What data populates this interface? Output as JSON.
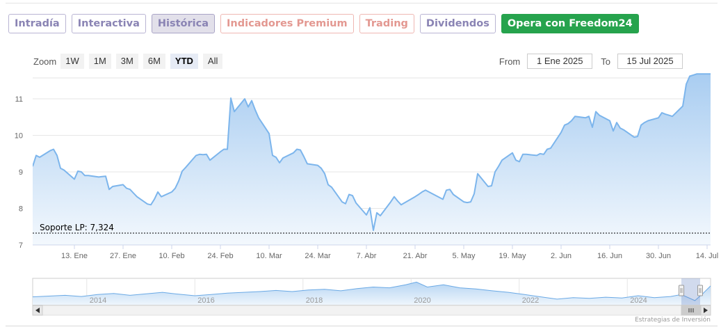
{
  "tabs": [
    {
      "label": "Intradía",
      "style": "normal"
    },
    {
      "label": "Interactiva",
      "style": "normal"
    },
    {
      "label": "Histórica",
      "style": "active"
    },
    {
      "label": "Indicadores Premium",
      "style": "premium"
    },
    {
      "label": "Trading",
      "style": "premium"
    },
    {
      "label": "Dividendos",
      "style": "normal"
    },
    {
      "label": "Opera con Freedom24",
      "style": "green"
    }
  ],
  "zoom": {
    "label": "Zoom",
    "buttons": [
      "1W",
      "1M",
      "3M",
      "6M",
      "YTD",
      "All"
    ],
    "selected": "YTD"
  },
  "range": {
    "from_label": "From",
    "from_value": "1 Ene 2025",
    "to_label": "To",
    "to_value": "15 Jul 2025"
  },
  "credits": "Estrategias de Inversión",
  "colors": {
    "line": "#7cb5ec",
    "area_top": "#a9cdf1",
    "area_bottom": "#f3f8fd",
    "grid": "#e6e6e6"
  },
  "chart_data": {
    "type": "area",
    "x_start": "2025-01-01",
    "x_end": "2025-07-15",
    "ylim": [
      7,
      11.8
    ],
    "y_ticks": [
      7,
      8,
      9,
      10,
      11
    ],
    "x_ticks": [
      {
        "date": "2025-01-13",
        "label": "13. Ene"
      },
      {
        "date": "2025-01-27",
        "label": "27. Ene"
      },
      {
        "date": "2025-02-10",
        "label": "10. Feb"
      },
      {
        "date": "2025-02-24",
        "label": "24. Feb"
      },
      {
        "date": "2025-03-10",
        "label": "10. Mar"
      },
      {
        "date": "2025-03-24",
        "label": "24. Mar"
      },
      {
        "date": "2025-04-07",
        "label": "7. Abr"
      },
      {
        "date": "2025-04-21",
        "label": "21. Abr"
      },
      {
        "date": "2025-05-05",
        "label": "5. May"
      },
      {
        "date": "2025-05-19",
        "label": "19. May"
      },
      {
        "date": "2025-06-02",
        "label": "2. Jun"
      },
      {
        "date": "2025-06-16",
        "label": "16. Jun"
      },
      {
        "date": "2025-06-30",
        "label": "30. Jun"
      },
      {
        "date": "2025-07-14",
        "label": "14. Jul"
      }
    ],
    "support": {
      "label": "Soporte LP: 7,324",
      "value": 7.324
    },
    "series": [
      {
        "points": [
          [
            "2025-01-01",
            9.15
          ],
          [
            "2025-01-02",
            9.45
          ],
          [
            "2025-01-03",
            9.4
          ],
          [
            "2025-01-06",
            9.58
          ],
          [
            "2025-01-07",
            9.62
          ],
          [
            "2025-01-08",
            9.45
          ],
          [
            "2025-01-09",
            9.1
          ],
          [
            "2025-01-10",
            9.05
          ],
          [
            "2025-01-13",
            8.8
          ],
          [
            "2025-01-14",
            9.02
          ],
          [
            "2025-01-15",
            9.0
          ],
          [
            "2025-01-16",
            8.9
          ],
          [
            "2025-01-17",
            8.9
          ],
          [
            "2025-01-20",
            8.86
          ],
          [
            "2025-01-21",
            8.87
          ],
          [
            "2025-01-22",
            8.88
          ],
          [
            "2025-01-23",
            8.52
          ],
          [
            "2025-01-24",
            8.6
          ],
          [
            "2025-01-27",
            8.65
          ],
          [
            "2025-01-28",
            8.55
          ],
          [
            "2025-01-29",
            8.52
          ],
          [
            "2025-01-30",
            8.42
          ],
          [
            "2025-01-31",
            8.32
          ],
          [
            "2025-02-03",
            8.12
          ],
          [
            "2025-02-04",
            8.1
          ],
          [
            "2025-02-05",
            8.25
          ],
          [
            "2025-02-06",
            8.45
          ],
          [
            "2025-02-07",
            8.32
          ],
          [
            "2025-02-10",
            8.45
          ],
          [
            "2025-02-11",
            8.55
          ],
          [
            "2025-02-12",
            8.75
          ],
          [
            "2025-02-13",
            9.02
          ],
          [
            "2025-02-14",
            9.12
          ],
          [
            "2025-02-17",
            9.45
          ],
          [
            "2025-02-18",
            9.48
          ],
          [
            "2025-02-19",
            9.47
          ],
          [
            "2025-02-20",
            9.48
          ],
          [
            "2025-02-21",
            9.32
          ],
          [
            "2025-02-24",
            9.55
          ],
          [
            "2025-02-25",
            9.62
          ],
          [
            "2025-02-26",
            9.62
          ],
          [
            "2025-02-27",
            11.02
          ],
          [
            "2025-02-28",
            10.65
          ],
          [
            "2025-03-03",
            11.0
          ],
          [
            "2025-03-04",
            10.78
          ],
          [
            "2025-03-05",
            10.95
          ],
          [
            "2025-03-06",
            10.7
          ],
          [
            "2025-03-07",
            10.48
          ],
          [
            "2025-03-10",
            10.05
          ],
          [
            "2025-03-11",
            9.45
          ],
          [
            "2025-03-12",
            9.4
          ],
          [
            "2025-03-13",
            9.25
          ],
          [
            "2025-03-14",
            9.38
          ],
          [
            "2025-03-17",
            9.52
          ],
          [
            "2025-03-18",
            9.62
          ],
          [
            "2025-03-19",
            9.6
          ],
          [
            "2025-03-20",
            9.42
          ],
          [
            "2025-03-21",
            9.22
          ],
          [
            "2025-03-24",
            9.18
          ],
          [
            "2025-03-25",
            9.1
          ],
          [
            "2025-03-26",
            8.95
          ],
          [
            "2025-03-27",
            8.65
          ],
          [
            "2025-03-28",
            8.58
          ],
          [
            "2025-03-31",
            8.18
          ],
          [
            "2025-04-01",
            8.13
          ],
          [
            "2025-04-02",
            8.38
          ],
          [
            "2025-04-03",
            8.35
          ],
          [
            "2025-04-04",
            8.15
          ],
          [
            "2025-04-07",
            7.82
          ],
          [
            "2025-04-08",
            8.02
          ],
          [
            "2025-04-09",
            7.4
          ],
          [
            "2025-04-10",
            7.88
          ],
          [
            "2025-04-11",
            7.8
          ],
          [
            "2025-04-14",
            8.18
          ],
          [
            "2025-04-15",
            8.32
          ],
          [
            "2025-04-16",
            8.2
          ],
          [
            "2025-04-17",
            8.1
          ],
          [
            "2025-04-21",
            8.32
          ],
          [
            "2025-04-22",
            8.38
          ],
          [
            "2025-04-23",
            8.45
          ],
          [
            "2025-04-24",
            8.5
          ],
          [
            "2025-04-25",
            8.45
          ],
          [
            "2025-04-28",
            8.3
          ],
          [
            "2025-04-29",
            8.25
          ],
          [
            "2025-04-30",
            8.5
          ],
          [
            "2025-05-01",
            8.52
          ],
          [
            "2025-05-02",
            8.38
          ],
          [
            "2025-05-05",
            8.18
          ],
          [
            "2025-05-06",
            8.16
          ],
          [
            "2025-05-07",
            8.18
          ],
          [
            "2025-05-08",
            8.4
          ],
          [
            "2025-05-09",
            8.95
          ],
          [
            "2025-05-12",
            8.6
          ],
          [
            "2025-05-13",
            8.62
          ],
          [
            "2025-05-14",
            9.0
          ],
          [
            "2025-05-15",
            9.15
          ],
          [
            "2025-05-16",
            9.32
          ],
          [
            "2025-05-19",
            9.52
          ],
          [
            "2025-05-20",
            9.32
          ],
          [
            "2025-05-21",
            9.28
          ],
          [
            "2025-05-22",
            9.48
          ],
          [
            "2025-05-23",
            9.48
          ],
          [
            "2025-05-26",
            9.45
          ],
          [
            "2025-05-27",
            9.5
          ],
          [
            "2025-05-28",
            9.48
          ],
          [
            "2025-05-29",
            9.62
          ],
          [
            "2025-05-30",
            9.65
          ],
          [
            "2025-06-02",
            10.08
          ],
          [
            "2025-06-03",
            10.28
          ],
          [
            "2025-06-04",
            10.32
          ],
          [
            "2025-06-05",
            10.4
          ],
          [
            "2025-06-06",
            10.52
          ],
          [
            "2025-06-09",
            10.48
          ],
          [
            "2025-06-10",
            10.52
          ],
          [
            "2025-06-11",
            10.22
          ],
          [
            "2025-06-12",
            10.65
          ],
          [
            "2025-06-13",
            10.55
          ],
          [
            "2025-06-16",
            10.4
          ],
          [
            "2025-06-17",
            10.12
          ],
          [
            "2025-06-18",
            10.35
          ],
          [
            "2025-06-19",
            10.2
          ],
          [
            "2025-06-20",
            10.15
          ],
          [
            "2025-06-23",
            9.95
          ],
          [
            "2025-06-24",
            9.97
          ],
          [
            "2025-06-25",
            10.28
          ],
          [
            "2025-06-26",
            10.35
          ],
          [
            "2025-06-27",
            10.4
          ],
          [
            "2025-06-30",
            10.48
          ],
          [
            "2025-07-01",
            10.62
          ],
          [
            "2025-07-02",
            10.58
          ],
          [
            "2025-07-03",
            10.55
          ],
          [
            "2025-07-04",
            10.52
          ],
          [
            "2025-07-07",
            10.8
          ],
          [
            "2025-07-08",
            11.4
          ],
          [
            "2025-07-09",
            11.62
          ],
          [
            "2025-07-10",
            11.65
          ],
          [
            "2025-07-11",
            11.68
          ],
          [
            "2025-07-14",
            11.68
          ],
          [
            "2025-07-15",
            11.68
          ]
        ]
      }
    ],
    "navigator": {
      "year_labels": [
        "2014",
        "2016",
        "2018",
        "2020",
        "2022",
        "2024"
      ],
      "year_start": 2013,
      "year_end": 2025.54,
      "selected_from_year": 2025.0,
      "values": [
        [
          2013.0,
          8.6
        ],
        [
          2013.3,
          8.8
        ],
        [
          2013.6,
          9.0
        ],
        [
          2013.9,
          8.7
        ],
        [
          2014.2,
          9.2
        ],
        [
          2014.5,
          9.5
        ],
        [
          2014.8,
          9.0
        ],
        [
          2015.1,
          9.4
        ],
        [
          2015.4,
          9.8
        ],
        [
          2015.7,
          9.3
        ],
        [
          2016.0,
          8.9
        ],
        [
          2016.3,
          9.2
        ],
        [
          2016.6,
          9.6
        ],
        [
          2016.9,
          9.8
        ],
        [
          2017.2,
          10.0
        ],
        [
          2017.5,
          10.3
        ],
        [
          2017.8,
          10.0
        ],
        [
          2018.1,
          10.4
        ],
        [
          2018.4,
          10.6
        ],
        [
          2018.7,
          10.2
        ],
        [
          2019.0,
          10.8
        ],
        [
          2019.3,
          11.2
        ],
        [
          2019.6,
          11.0
        ],
        [
          2019.9,
          11.8
        ],
        [
          2020.1,
          12.5
        ],
        [
          2020.3,
          11.2
        ],
        [
          2020.6,
          11.8
        ],
        [
          2020.9,
          11.0
        ],
        [
          2021.2,
          10.7
        ],
        [
          2021.5,
          10.2
        ],
        [
          2021.8,
          9.8
        ],
        [
          2022.1,
          9.2
        ],
        [
          2022.4,
          8.6
        ],
        [
          2022.7,
          8.0
        ],
        [
          2023.0,
          8.4
        ],
        [
          2023.3,
          8.2
        ],
        [
          2023.6,
          8.5
        ],
        [
          2023.9,
          8.3
        ],
        [
          2024.2,
          8.9
        ],
        [
          2024.5,
          8.4
        ],
        [
          2024.8,
          8.7
        ],
        [
          2025.0,
          9.2
        ],
        [
          2025.25,
          7.6
        ],
        [
          2025.4,
          9.5
        ],
        [
          2025.54,
          11.5
        ]
      ]
    }
  }
}
